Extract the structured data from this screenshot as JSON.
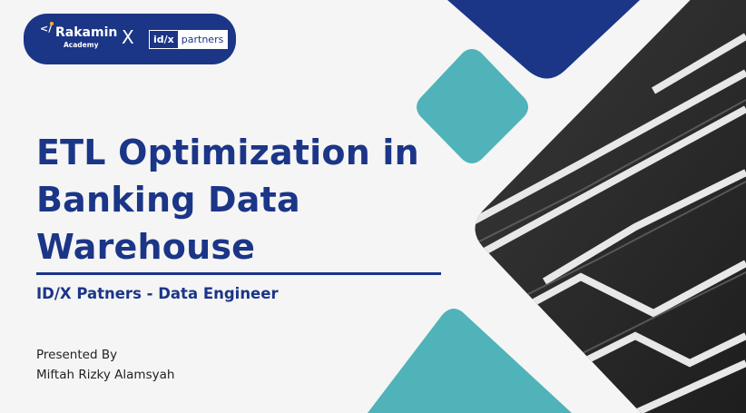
{
  "logo": {
    "brand1_name": "Rakamin",
    "brand1_sub": "Academy",
    "brand1_mark": "</",
    "separator": "X",
    "brand2_a": "id/x",
    "brand2_b": "partners"
  },
  "title_lines": [
    "ETL Optimization in",
    "Banking Data",
    "Warehouse"
  ],
  "subtitle": "ID/X Patners - Data Engineer",
  "presented_by_label": "Presented By",
  "presenter_name": "Miftah Rizky Alamsyah",
  "colors": {
    "primary": "#1b3587",
    "teal": "#4fb3b9",
    "background": "#f5f5f5"
  }
}
